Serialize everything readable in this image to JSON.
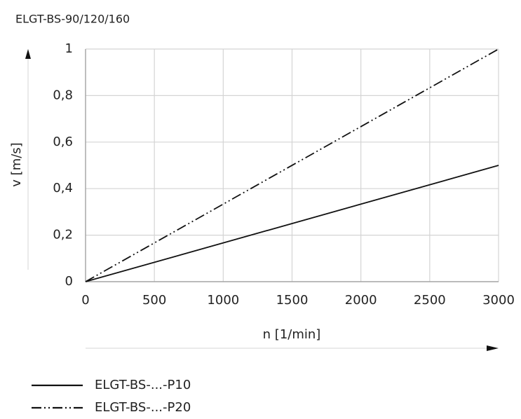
{
  "chart_data": {
    "type": "line",
    "title": "ELGT-BS-90/120/160",
    "x_label": "n [1/min]",
    "y_label": "v [m/s]",
    "x": [
      0,
      3000
    ],
    "series": [
      {
        "name": "ELGT-BS-...-P10",
        "color": "#111111",
        "dash": "solid",
        "values": [
          0,
          0.5
        ]
      },
      {
        "name": "ELGT-BS-...-P20",
        "color": "#111111",
        "dash": "dash-dot-dot",
        "values": [
          0,
          1
        ]
      }
    ],
    "xlim": [
      0,
      3000
    ],
    "xticks": [
      0,
      500,
      1000,
      1500,
      2000,
      2500,
      3000
    ],
    "ylim": [
      0,
      1
    ],
    "yticks": [
      0,
      {
        "value": 0.2,
        "label": "0,2"
      },
      {
        "value": 0.4,
        "label": "0,4"
      },
      {
        "value": 0.6,
        "label": "0,6"
      },
      {
        "value": 0.8,
        "label": "0,8"
      },
      1
    ],
    "grid": true
  }
}
